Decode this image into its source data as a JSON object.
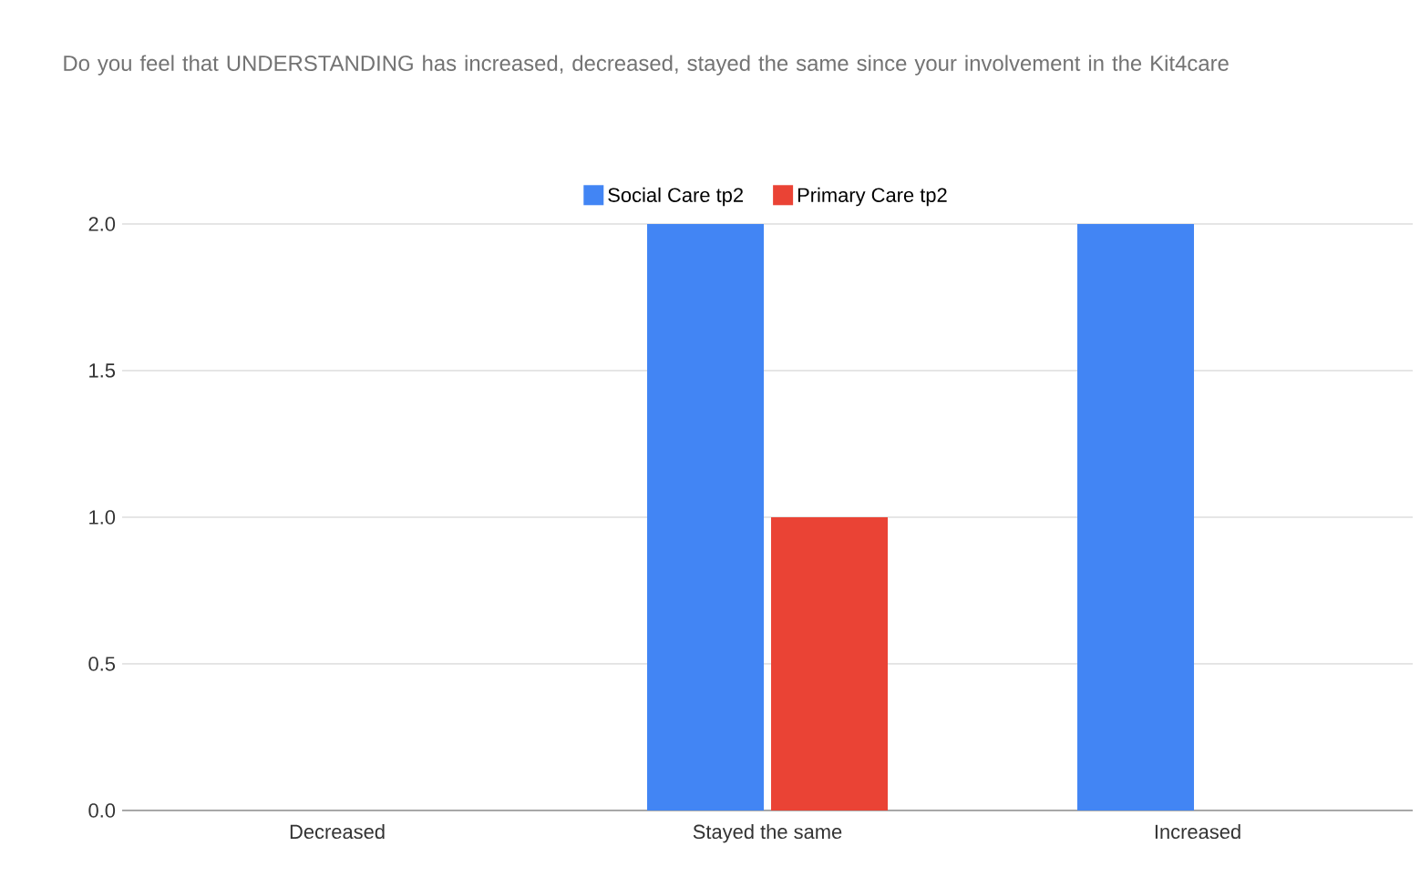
{
  "chart_data": {
    "type": "bar",
    "title": "Do you feel that UNDERSTANDING has increased, decreased, stayed the same since your involvement in the Kit4care",
    "categories": [
      "Decreased",
      "Stayed the same",
      "Increased"
    ],
    "series": [
      {
        "name": "Social Care tp2",
        "color": "#4285f4",
        "values": [
          0,
          2,
          2
        ]
      },
      {
        "name": "Primary Care tp2",
        "color": "#ea4335",
        "values": [
          0,
          1,
          0
        ]
      }
    ],
    "ylim": [
      0,
      2
    ],
    "yticks": [
      {
        "value": 0,
        "label": "0.0"
      },
      {
        "value": 0.5,
        "label": "0.5"
      },
      {
        "value": 1,
        "label": "1.0"
      },
      {
        "value": 1.5,
        "label": "1.5"
      },
      {
        "value": 2,
        "label": "2.0"
      }
    ],
    "grid": "y",
    "legend": "top"
  }
}
